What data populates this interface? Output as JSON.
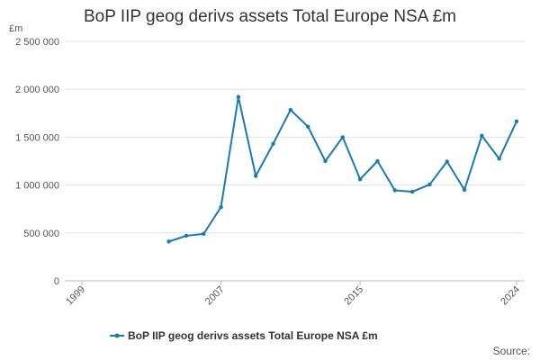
{
  "chart_data": {
    "type": "line",
    "title": "BoP IIP geog derivs assets Total Europe NSA £m",
    "unit_label": "£m",
    "y_ticks": [
      "0",
      "500 000",
      "1 000 000",
      "1 500 000",
      "2 000 000",
      "2 500 000"
    ],
    "y_tick_values": [
      0,
      500000,
      1000000,
      1500000,
      2000000,
      2500000
    ],
    "x_ticks": [
      "1999",
      "2007",
      "2015",
      "2024"
    ],
    "xlim": [
      1999,
      2024
    ],
    "ylim": [
      0,
      2500000
    ],
    "grid": true,
    "legend_position": "bottom",
    "series": [
      {
        "name": "BoP IIP geog derivs assets Total Europe NSA £m",
        "color": "#1a7ab5",
        "x": [
          2004,
          2005,
          2006,
          2007,
          2008,
          2009,
          2010,
          2011,
          2012,
          2013,
          2014,
          2015,
          2016,
          2017,
          2018,
          2019,
          2020,
          2021,
          2022,
          2023,
          2024
        ],
        "values": [
          410000,
          470000,
          490000,
          770000,
          1920000,
          1095000,
          1430000,
          1785000,
          1610000,
          1250000,
          1500000,
          1060000,
          1250000,
          945000,
          930000,
          1005000,
          1245000,
          950000,
          1515000,
          1275000,
          1665000
        ]
      }
    ]
  },
  "source_text": "Source:"
}
